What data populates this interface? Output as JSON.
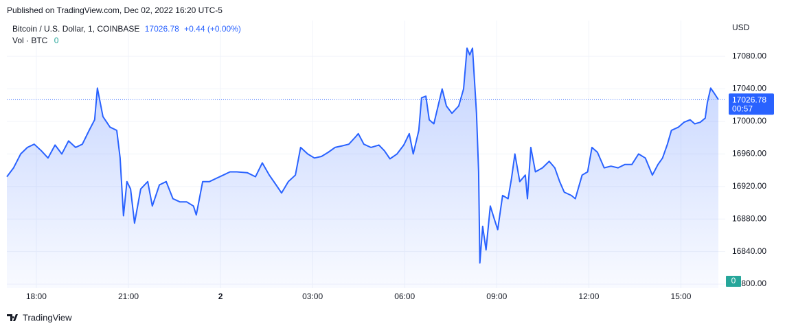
{
  "header": {
    "published": "Published on TradingView.com, Dec 02, 2022 16:20 UTC-5"
  },
  "chart_data": {
    "type": "area",
    "series": [
      {
        "name": "Bitcoin / U.S. Dollar, 1, COINBASE",
        "color": "#2962ff",
        "values": [
          16932,
          16943,
          16960,
          16968,
          16972,
          16964,
          16955,
          16971,
          16960,
          16976,
          16968,
          16972,
          16989,
          17002,
          17041,
          17006,
          16993,
          16989,
          16955,
          16884,
          16926,
          16917,
          16875,
          16917,
          16926,
          16896,
          16922,
          16926,
          16905,
          16901,
          16901,
          16896,
          16885,
          16926,
          16926,
          16930,
          16934,
          16938,
          16938,
          16937,
          16932,
          16949,
          16934,
          16922,
          16912,
          16926,
          16934,
          16968,
          16960,
          16955,
          16957,
          16962,
          16968,
          16970,
          16972,
          16981,
          16985,
          16972,
          16968,
          16971,
          16964,
          16954,
          16960,
          16971,
          16985,
          16960,
          16989,
          17029,
          17031,
          17002,
          16997,
          17019,
          17040,
          17019,
          17010,
          17019,
          17040,
          17090,
          17082,
          17090,
          17035,
          17010,
          16938,
          16826,
          16871,
          16842,
          16896,
          16880,
          16867,
          16909,
          16905,
          16930,
          16960,
          16926,
          16934,
          16905,
          16968,
          16938,
          16943,
          16951,
          16943,
          16926,
          16913,
          16909,
          16905,
          16934,
          16938,
          16968,
          16962,
          16943,
          16945,
          16943,
          16947,
          16947,
          16960,
          16955,
          16934,
          16947,
          16955,
          16972,
          16989,
          16993,
          16999,
          17002,
          16997,
          16999,
          17004,
          17023,
          17041,
          17035,
          17026.78
        ]
      }
    ],
    "x": [
      17.04,
      17.26,
      17.49,
      17.71,
      17.93,
      18.16,
      18.38,
      18.61,
      18.83,
      19.05,
      19.28,
      19.5,
      19.72,
      19.9,
      19.99,
      20.17,
      20.4,
      20.62,
      20.73,
      20.84,
      20.95,
      21.07,
      21.2,
      21.4,
      21.63,
      21.78,
      22.01,
      22.23,
      22.45,
      22.68,
      22.9,
      23.12,
      23.21,
      23.42,
      23.64,
      23.86,
      24.09,
      24.31,
      24.53,
      24.87,
      25.14,
      25.36,
      25.59,
      25.81,
      25.99,
      26.21,
      26.44,
      26.61,
      26.84,
      27.06,
      27.29,
      27.51,
      27.73,
      27.96,
      28.18,
      28.4,
      28.49,
      28.67,
      28.9,
      29.16,
      29.34,
      29.52,
      29.75,
      29.97,
      30.15,
      30.28,
      30.46,
      30.55,
      30.69,
      30.8,
      30.95,
      31.09,
      31.22,
      31.36,
      31.54,
      31.76,
      31.92,
      32.03,
      32.12,
      32.21,
      32.3,
      32.34,
      32.41,
      32.45,
      32.54,
      32.65,
      32.79,
      32.92,
      33.03,
      33.19,
      33.37,
      33.48,
      33.59,
      33.75,
      33.93,
      34.0,
      34.11,
      34.26,
      34.49,
      34.71,
      34.89,
      35.05,
      35.2,
      35.43,
      35.56,
      35.78,
      35.96,
      36.1,
      36.28,
      36.5,
      36.72,
      36.95,
      37.17,
      37.4,
      37.62,
      37.84,
      38.07,
      38.25,
      38.4,
      38.56,
      38.69,
      38.92,
      39.1,
      39.3,
      39.45,
      39.63,
      39.79,
      39.86,
      39.97,
      40.08,
      40.22
    ],
    "xlim": [
      17.04,
      40.22
    ],
    "xticks": [
      {
        "value": 18,
        "label": "18:00"
      },
      {
        "value": 21,
        "label": "21:00"
      },
      {
        "value": 24,
        "label": "2"
      },
      {
        "value": 27,
        "label": "03:00"
      },
      {
        "value": 30,
        "label": "06:00"
      },
      {
        "value": 33,
        "label": "09:00"
      },
      {
        "value": 36,
        "label": "12:00"
      },
      {
        "value": 39,
        "label": "15:00"
      }
    ],
    "ylim": [
      16795,
      17124
    ],
    "yticks": [
      {
        "value": 16800,
        "label": "16800.00"
      },
      {
        "value": 16840,
        "label": "16840.00"
      },
      {
        "value": 16880,
        "label": "16880.00"
      },
      {
        "value": 16920,
        "label": "16920.00"
      },
      {
        "value": 16960,
        "label": "16960.00"
      },
      {
        "value": 17000,
        "label": "17000.00"
      },
      {
        "value": 17040,
        "label": "17040.00"
      },
      {
        "value": 17080,
        "label": "17080.00"
      }
    ],
    "y_axis_label": "USD",
    "change": "+0.44 (+0.00%)",
    "countdown": "00:57",
    "volume": {
      "label": "Vol · BTC",
      "value": 0,
      "color": "#26a69a"
    },
    "grid": true
  },
  "footer": {
    "brand": "TradingView"
  }
}
